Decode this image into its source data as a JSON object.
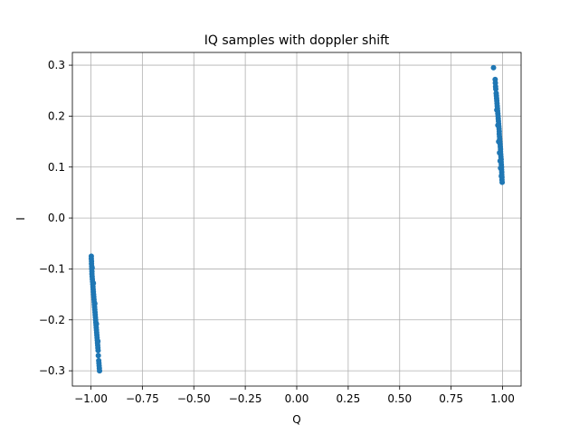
{
  "chart_data": {
    "type": "scatter",
    "title": "IQ samples with doppler shift",
    "xlabel": "Q",
    "ylabel": "I",
    "xlim": [
      -1.09,
      1.09
    ],
    "ylim": [
      -0.33,
      0.325
    ],
    "xticks": [
      -1.0,
      -0.75,
      -0.5,
      -0.25,
      0.0,
      0.25,
      0.5,
      0.75,
      1.0
    ],
    "xtick_labels": [
      "−1.00",
      "−0.75",
      "−0.50",
      "−0.25",
      "0.00",
      "0.25",
      "0.50",
      "0.75",
      "1.00"
    ],
    "yticks": [
      -0.3,
      -0.2,
      -0.1,
      0.0,
      0.1,
      0.2,
      0.3
    ],
    "ytick_labels": [
      "−0.3",
      "−0.2",
      "−0.1",
      "0.0",
      "0.1",
      "0.2",
      "0.3"
    ],
    "grid": true,
    "marker_color": "#1f77b4",
    "series": [
      {
        "points": [
          [
            0.956,
            0.295
          ],
          [
            0.964,
            0.272
          ],
          [
            0.965,
            0.265
          ],
          [
            0.966,
            0.258
          ],
          [
            0.967,
            0.253
          ],
          [
            0.969,
            0.245
          ],
          [
            0.97,
            0.24
          ],
          [
            0.971,
            0.235
          ],
          [
            0.972,
            0.23
          ],
          [
            0.973,
            0.225
          ],
          [
            0.974,
            0.22
          ],
          [
            0.975,
            0.215
          ],
          [
            0.976,
            0.21
          ],
          [
            0.977,
            0.205
          ],
          [
            0.978,
            0.2
          ],
          [
            0.979,
            0.195
          ],
          [
            0.98,
            0.19
          ],
          [
            0.981,
            0.185
          ],
          [
            0.982,
            0.18
          ],
          [
            0.983,
            0.175
          ],
          [
            0.984,
            0.17
          ],
          [
            0.984,
            0.165
          ],
          [
            0.985,
            0.16
          ],
          [
            0.986,
            0.155
          ],
          [
            0.987,
            0.15
          ],
          [
            0.988,
            0.145
          ],
          [
            0.989,
            0.14
          ],
          [
            0.99,
            0.135
          ],
          [
            0.99,
            0.13
          ],
          [
            0.991,
            0.125
          ],
          [
            0.992,
            0.12
          ],
          [
            0.993,
            0.115
          ],
          [
            0.993,
            0.11
          ],
          [
            0.994,
            0.105
          ],
          [
            0.995,
            0.1
          ],
          [
            0.995,
            0.095
          ],
          [
            0.996,
            0.09
          ],
          [
            0.996,
            0.085
          ],
          [
            0.997,
            0.08
          ],
          [
            0.997,
            0.075
          ],
          [
            0.998,
            0.07
          ],
          [
            0.977,
            0.182
          ],
          [
            0.985,
            0.128
          ],
          [
            0.99,
            0.098
          ],
          [
            0.981,
            0.15
          ],
          [
            0.972,
            0.212
          ],
          [
            0.988,
            0.112
          ],
          [
            0.994,
            0.082
          ]
        ]
      },
      {
        "points": [
          [
            -0.998,
            -0.075
          ],
          [
            -0.998,
            -0.08
          ],
          [
            -0.997,
            -0.085
          ],
          [
            -0.997,
            -0.09
          ],
          [
            -0.996,
            -0.095
          ],
          [
            -0.996,
            -0.1
          ],
          [
            -0.995,
            -0.105
          ],
          [
            -0.995,
            -0.11
          ],
          [
            -0.994,
            -0.115
          ],
          [
            -0.993,
            -0.12
          ],
          [
            -0.992,
            -0.125
          ],
          [
            -0.991,
            -0.13
          ],
          [
            -0.99,
            -0.135
          ],
          [
            -0.989,
            -0.14
          ],
          [
            -0.988,
            -0.145
          ],
          [
            -0.987,
            -0.15
          ],
          [
            -0.986,
            -0.155
          ],
          [
            -0.985,
            -0.16
          ],
          [
            -0.984,
            -0.165
          ],
          [
            -0.983,
            -0.17
          ],
          [
            -0.982,
            -0.175
          ],
          [
            -0.981,
            -0.18
          ],
          [
            -0.98,
            -0.185
          ],
          [
            -0.979,
            -0.19
          ],
          [
            -0.978,
            -0.195
          ],
          [
            -0.977,
            -0.2
          ],
          [
            -0.976,
            -0.205
          ],
          [
            -0.975,
            -0.21
          ],
          [
            -0.974,
            -0.215
          ],
          [
            -0.973,
            -0.22
          ],
          [
            -0.972,
            -0.225
          ],
          [
            -0.971,
            -0.23
          ],
          [
            -0.97,
            -0.235
          ],
          [
            -0.969,
            -0.24
          ],
          [
            -0.968,
            -0.245
          ],
          [
            -0.967,
            -0.25
          ],
          [
            -0.966,
            -0.255
          ],
          [
            -0.965,
            -0.26
          ],
          [
            -0.964,
            -0.27
          ],
          [
            -0.962,
            -0.28
          ],
          [
            -0.961,
            -0.285
          ],
          [
            -0.96,
            -0.29
          ],
          [
            -0.959,
            -0.295
          ],
          [
            -0.958,
            -0.3
          ],
          [
            -0.994,
            -0.098
          ],
          [
            -0.988,
            -0.128
          ],
          [
            -0.981,
            -0.168
          ],
          [
            -0.973,
            -0.208
          ],
          [
            -0.966,
            -0.242
          ]
        ]
      }
    ]
  }
}
